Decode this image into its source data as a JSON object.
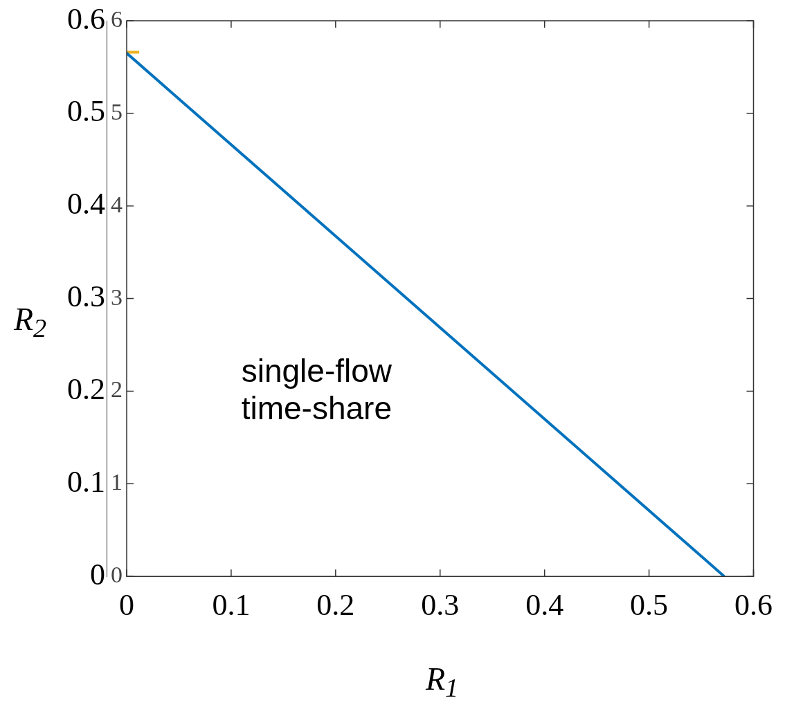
{
  "chart_data": {
    "type": "line",
    "xlabel": "R$_{1}$",
    "ylabel": "R$_{2}$",
    "xlim": [
      0,
      0.6
    ],
    "xticks": [
      0,
      0.1,
      0.2,
      0.3,
      0.4,
      0.5,
      0.6
    ],
    "ylim": [
      0,
      0.6
    ],
    "yticks": [
      0,
      0.1,
      0.2,
      0.3,
      0.4,
      0.5,
      0.6
    ],
    "y2lim": [
      0,
      6
    ],
    "y2ticks": [
      0,
      1,
      2,
      3,
      4,
      5,
      6
    ],
    "marker": "none",
    "series": [
      {
        "color": "#0072bd",
        "x": [
          0,
          0.572
        ],
        "values": [
          0.565,
          0
        ]
      },
      {
        "color": "#edb120",
        "x": [
          0,
          0.012
        ],
        "values": [
          0.566,
          0.566
        ]
      }
    ],
    "annotations": [
      "single-flow\ntime-share"
    ]
  }
}
